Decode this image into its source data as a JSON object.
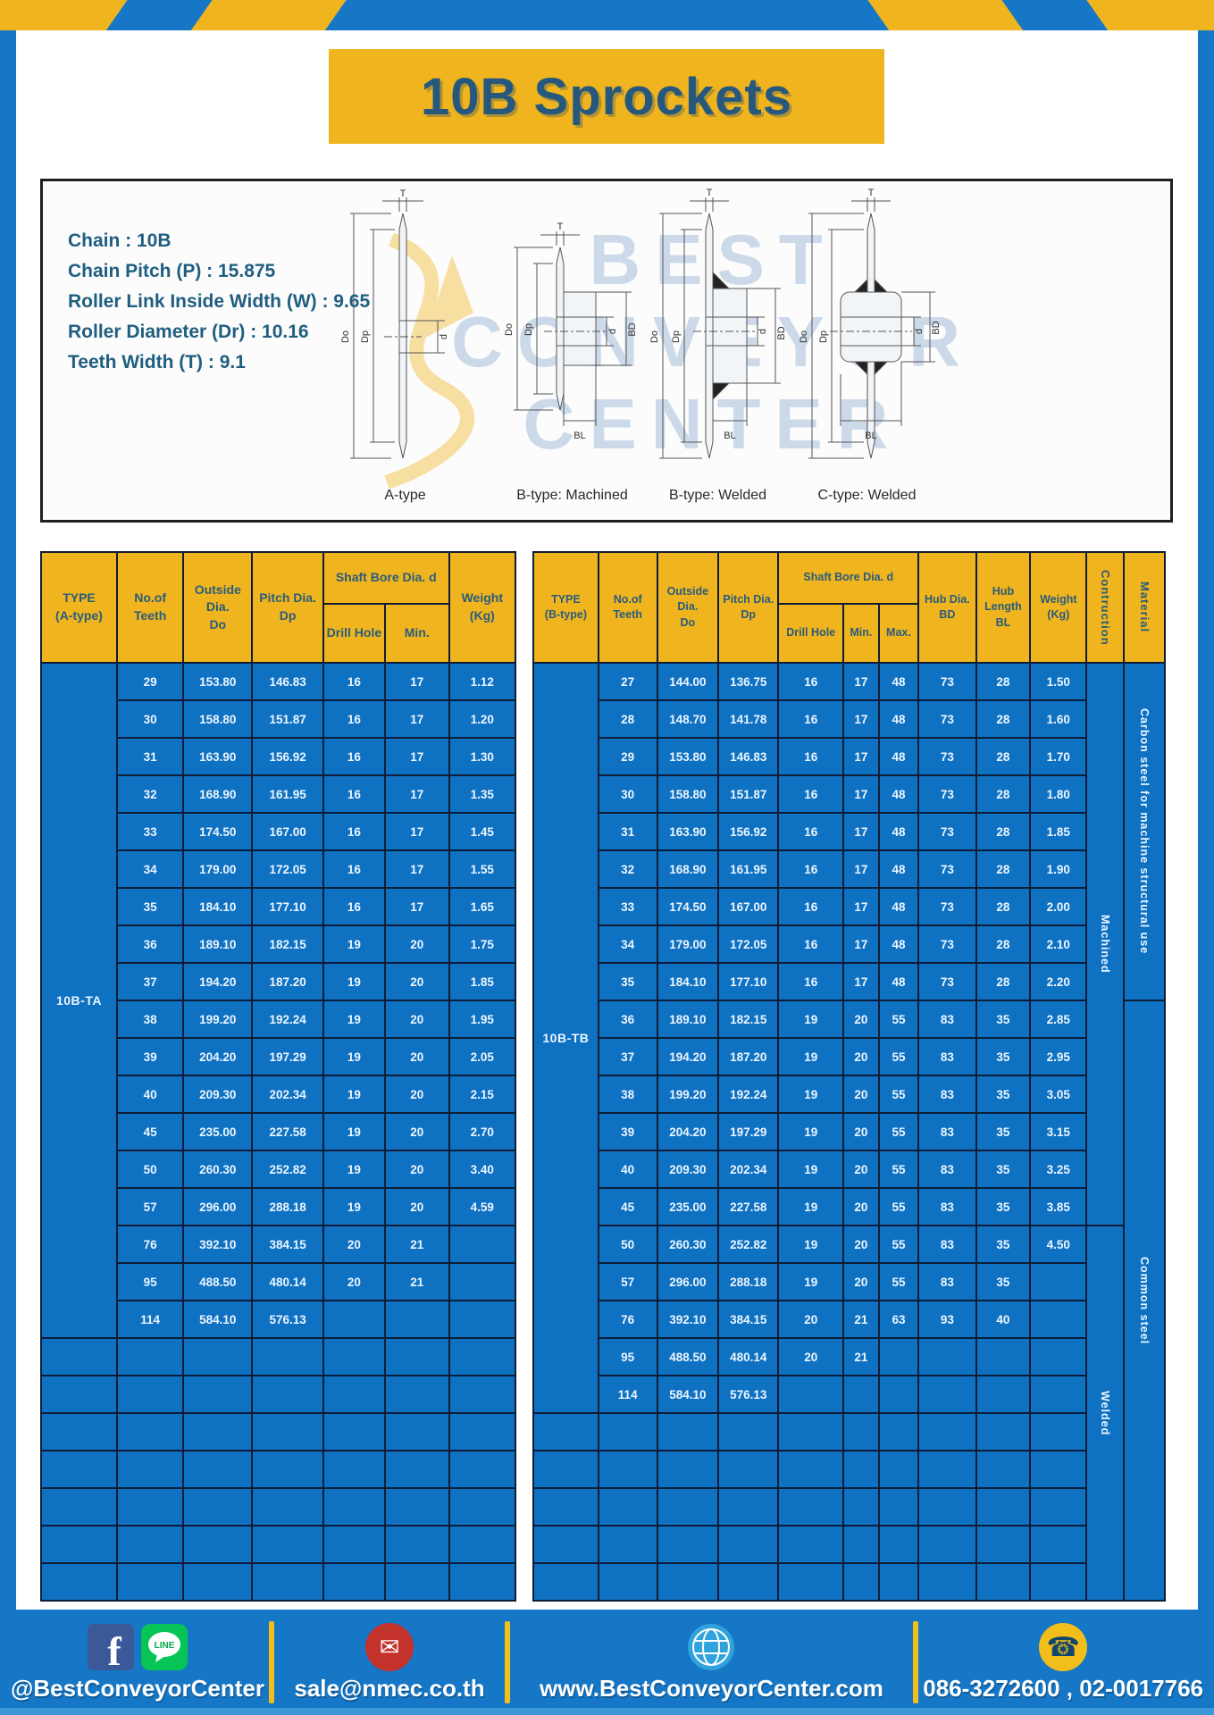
{
  "page": {
    "title": "10B Sprockets"
  },
  "specs": [
    "Chain  :  10B",
    "Chain Pitch (P)  :  15.875",
    "Roller Link Inside Width (W) : 9.65",
    "Roller Diameter (Dr)  : 10.16",
    "Teeth Width (T)  :  9.1"
  ],
  "diagram": {
    "watermark": [
      "BEST",
      "CONVEYOR",
      "CENTER"
    ],
    "dim_labels": {
      "t": "T",
      "outer": "Do",
      "pitch": "Dp",
      "bore": "d",
      "hub": "BD",
      "hub_len": "BL"
    },
    "captions": [
      "A-type",
      "B-type: Machined",
      "B-type: Welded",
      "C-type: Welded"
    ]
  },
  "left_table": {
    "headers": {
      "type": "TYPE\n(A-type)",
      "teeth": "No.of\nTeeth",
      "outside": "Outside\nDia.\nDo",
      "pitch": "Pitch Dia.\nDp",
      "shaft_bore": "Shaft Bore Dia. d",
      "drill": "Drill Hole",
      "min": "Min.",
      "weight": "Weight\n(Kg)"
    },
    "type_label": "10B-TA",
    "rows": [
      [
        "29",
        "153.80",
        "146.83",
        "16",
        "17",
        "1.12"
      ],
      [
        "30",
        "158.80",
        "151.87",
        "16",
        "17",
        "1.20"
      ],
      [
        "31",
        "163.90",
        "156.92",
        "16",
        "17",
        "1.30"
      ],
      [
        "32",
        "168.90",
        "161.95",
        "16",
        "17",
        "1.35"
      ],
      [
        "33",
        "174.50",
        "167.00",
        "16",
        "17",
        "1.45"
      ],
      [
        "34",
        "179.00",
        "172.05",
        "16",
        "17",
        "1.55"
      ],
      [
        "35",
        "184.10",
        "177.10",
        "16",
        "17",
        "1.65"
      ],
      [
        "36",
        "189.10",
        "182.15",
        "19",
        "20",
        "1.75"
      ],
      [
        "37",
        "194.20",
        "187.20",
        "19",
        "20",
        "1.85"
      ],
      [
        "38",
        "199.20",
        "192.24",
        "19",
        "20",
        "1.95"
      ],
      [
        "39",
        "204.20",
        "197.29",
        "19",
        "20",
        "2.05"
      ],
      [
        "40",
        "209.30",
        "202.34",
        "19",
        "20",
        "2.15"
      ],
      [
        "45",
        "235.00",
        "227.58",
        "19",
        "20",
        "2.70"
      ],
      [
        "50",
        "260.30",
        "252.82",
        "19",
        "20",
        "3.40"
      ],
      [
        "57",
        "296.00",
        "288.18",
        "19",
        "20",
        "4.59"
      ],
      [
        "76",
        "392.10",
        "384.15",
        "20",
        "21",
        ""
      ],
      [
        "95",
        "488.50",
        "480.14",
        "20",
        "21",
        ""
      ],
      [
        "114",
        "584.10",
        "576.13",
        "",
        "",
        ""
      ]
    ],
    "empty_rows": 7
  },
  "right_table": {
    "headers": {
      "type": "TYPE\n(B-type)",
      "teeth": "No.of\nTeeth",
      "outside": "Outside\nDia.\nDo",
      "pitch": "Pitch Dia.\nDp",
      "shaft_bore": "Shaft Bore Dia. d",
      "drill": "Drill Hole",
      "min": "Min.",
      "max": "Max.",
      "hub_dia": "Hub Dia.\nBD",
      "hub_len": "Hub\nLength\nBL",
      "weight": "Weight\n(Kg)",
      "construction": "Contruction",
      "material": "Material"
    },
    "type_label": "10B-TB",
    "rows": [
      [
        "27",
        "144.00",
        "136.75",
        "16",
        "17",
        "48",
        "73",
        "28",
        "1.50"
      ],
      [
        "28",
        "148.70",
        "141.78",
        "16",
        "17",
        "48",
        "73",
        "28",
        "1.60"
      ],
      [
        "29",
        "153.80",
        "146.83",
        "16",
        "17",
        "48",
        "73",
        "28",
        "1.70"
      ],
      [
        "30",
        "158.80",
        "151.87",
        "16",
        "17",
        "48",
        "73",
        "28",
        "1.80"
      ],
      [
        "31",
        "163.90",
        "156.92",
        "16",
        "17",
        "48",
        "73",
        "28",
        "1.85"
      ],
      [
        "32",
        "168.90",
        "161.95",
        "16",
        "17",
        "48",
        "73",
        "28",
        "1.90"
      ],
      [
        "33",
        "174.50",
        "167.00",
        "16",
        "17",
        "48",
        "73",
        "28",
        "2.00"
      ],
      [
        "34",
        "179.00",
        "172.05",
        "16",
        "17",
        "48",
        "73",
        "28",
        "2.10"
      ],
      [
        "35",
        "184.10",
        "177.10",
        "16",
        "17",
        "48",
        "73",
        "28",
        "2.20"
      ],
      [
        "36",
        "189.10",
        "182.15",
        "19",
        "20",
        "55",
        "83",
        "35",
        "2.85"
      ],
      [
        "37",
        "194.20",
        "187.20",
        "19",
        "20",
        "55",
        "83",
        "35",
        "2.95"
      ],
      [
        "38",
        "199.20",
        "192.24",
        "19",
        "20",
        "55",
        "83",
        "35",
        "3.05"
      ],
      [
        "39",
        "204.20",
        "197.29",
        "19",
        "20",
        "55",
        "83",
        "35",
        "3.15"
      ],
      [
        "40",
        "209.30",
        "202.34",
        "19",
        "20",
        "55",
        "83",
        "35",
        "3.25"
      ],
      [
        "45",
        "235.00",
        "227.58",
        "19",
        "20",
        "55",
        "83",
        "35",
        "3.85"
      ],
      [
        "50",
        "260.30",
        "252.82",
        "19",
        "20",
        "55",
        "83",
        "35",
        "4.50"
      ],
      [
        "57",
        "296.00",
        "288.18",
        "19",
        "20",
        "55",
        "83",
        "35",
        ""
      ],
      [
        "76",
        "392.10",
        "384.15",
        "20",
        "21",
        "63",
        "93",
        "40",
        ""
      ],
      [
        "95",
        "488.50",
        "480.14",
        "20",
        "21",
        "",
        "",
        "",
        ""
      ],
      [
        "114",
        "584.10",
        "576.13",
        "",
        "",
        "",
        "",
        "",
        ""
      ]
    ],
    "empty_rows": 5,
    "construction_sections": [
      {
        "label": "Machined",
        "start": 0,
        "span": 15
      },
      {
        "label": "Welded",
        "start": 15,
        "span": 10
      }
    ],
    "material_sections": [
      {
        "label": "Carbon steel for machine structural use",
        "start": 0,
        "span": 9
      },
      {
        "label": "Common steel",
        "start": 9,
        "span": 16
      }
    ]
  },
  "footer": {
    "social": "@BestConveyorCenter",
    "email": "sale@nmec.co.th",
    "website": "www.BestConveyorCenter.com",
    "phone": "086-3272600 , 02-0017766",
    "line_badge": "LINE",
    "facebook_letter": "f"
  },
  "colors": {
    "frame_blue": "#1577C6",
    "cell_blue": "#0F71C2",
    "accent_yellow": "#EFB41E",
    "header_text": "#2A5C7C",
    "title_text": "#26587E",
    "border_dark": "#0E1D35"
  }
}
